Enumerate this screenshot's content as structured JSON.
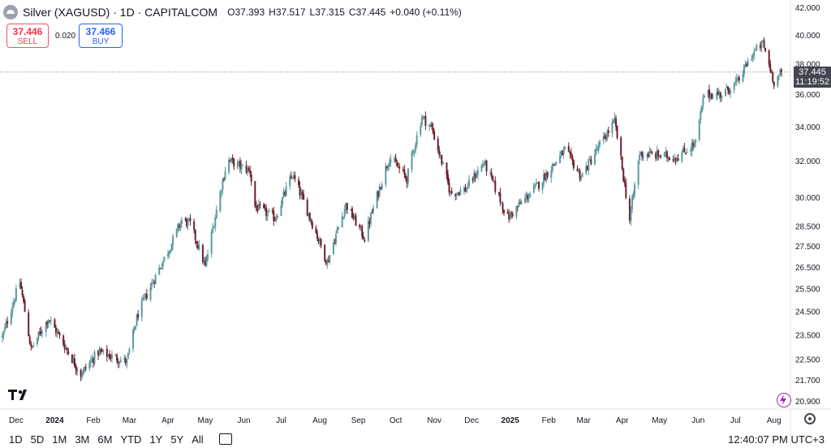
{
  "header": {
    "title": "Silver (XAGUSD) · 1D · CAPITALCOM",
    "open_label": "O",
    "open": "37.393",
    "high_label": "H",
    "high": "37.517",
    "low_label": "L",
    "low": "37.315",
    "close_label": "C",
    "close": "37.445",
    "change": "+0.040 (+0.11%)"
  },
  "trade": {
    "sell_price": "37.446",
    "sell_label": "SELL",
    "spread": "0.020",
    "buy_price": "37.466",
    "buy_label": "BUY"
  },
  "last_price": {
    "value": "37.445",
    "countdown": "11:19:52"
  },
  "bottom": {
    "timeframes": [
      "1D",
      "5D",
      "1M",
      "3M",
      "6M",
      "YTD",
      "1Y",
      "5Y",
      "All"
    ],
    "clock": "12:40:07 PM UTC+3"
  },
  "colors": {
    "up": "#5b9aa0",
    "down": "#6e1f2a",
    "last_line": "#787b86"
  },
  "chart_data": {
    "type": "candlestick",
    "scale": "log",
    "ylim": [
      20.6,
      42.3
    ],
    "y_ticks": [
      "42.000",
      "40.000",
      "38.000",
      "36.000",
      "34.000",
      "32.000",
      "30.000",
      "28.500",
      "27.500",
      "26.500",
      "25.500",
      "24.500",
      "23.500",
      "22.500",
      "21.700",
      "20.900"
    ],
    "x_ticks": [
      "Dec",
      "2024",
      "Feb",
      "Mar",
      "Apr",
      "May",
      "Jun",
      "Jul",
      "Aug",
      "Sep",
      "Oct",
      "Nov",
      "Dec",
      "2025",
      "Feb",
      "Mar",
      "Apr",
      "May",
      "Jun",
      "Jul",
      "Aug"
    ],
    "anchors": [
      {
        "date": "2023-11-20",
        "close": 23.4
      },
      {
        "date": "2023-12-01",
        "close": 25.3
      },
      {
        "date": "2023-12-04",
        "close": 25.8
      },
      {
        "date": "2023-12-13",
        "close": 22.9
      },
      {
        "date": "2023-12-27",
        "close": 24.2
      },
      {
        "date": "2024-01-22",
        "close": 21.9
      },
      {
        "date": "2024-02-05",
        "close": 22.8
      },
      {
        "date": "2024-02-28",
        "close": 22.4
      },
      {
        "date": "2024-03-08",
        "close": 24.4
      },
      {
        "date": "2024-04-03",
        "close": 27.5
      },
      {
        "date": "2024-04-12",
        "close": 28.8
      },
      {
        "date": "2024-04-19",
        "close": 28.6
      },
      {
        "date": "2024-05-01",
        "close": 26.5
      },
      {
        "date": "2024-05-17",
        "close": 31.5
      },
      {
        "date": "2024-05-20",
        "close": 32.0
      },
      {
        "date": "2024-06-06",
        "close": 31.4
      },
      {
        "date": "2024-06-10",
        "close": 29.5
      },
      {
        "date": "2024-06-26",
        "close": 28.9
      },
      {
        "date": "2024-07-10",
        "close": 31.2
      },
      {
        "date": "2024-08-07",
        "close": 26.7
      },
      {
        "date": "2024-08-22",
        "close": 29.6
      },
      {
        "date": "2024-09-06",
        "close": 27.9
      },
      {
        "date": "2024-09-26",
        "close": 32.2
      },
      {
        "date": "2024-10-10",
        "close": 31.0
      },
      {
        "date": "2024-10-22",
        "close": 34.6
      },
      {
        "date": "2024-10-30",
        "close": 33.9
      },
      {
        "date": "2024-11-14",
        "close": 30.2
      },
      {
        "date": "2024-11-26",
        "close": 30.4
      },
      {
        "date": "2024-12-11",
        "close": 31.9
      },
      {
        "date": "2024-12-30",
        "close": 28.9
      },
      {
        "date": "2025-01-24",
        "close": 30.7
      },
      {
        "date": "2025-02-14",
        "close": 32.6
      },
      {
        "date": "2025-02-27",
        "close": 31.1
      },
      {
        "date": "2025-03-26",
        "close": 34.3
      },
      {
        "date": "2025-04-07",
        "close": 28.8
      },
      {
        "date": "2025-04-15",
        "close": 32.4
      },
      {
        "date": "2025-05-15",
        "close": 32.2
      },
      {
        "date": "2025-05-30",
        "close": 33.0
      },
      {
        "date": "2025-06-06",
        "close": 36.0
      },
      {
        "date": "2025-06-20",
        "close": 36.0
      },
      {
        "date": "2025-07-03",
        "close": 36.8
      },
      {
        "date": "2025-07-14",
        "close": 38.6
      },
      {
        "date": "2025-07-23",
        "close": 39.4
      },
      {
        "date": "2025-08-01",
        "close": 36.8
      },
      {
        "date": "2025-08-07",
        "close": 37.445
      }
    ],
    "last_price": 37.445
  }
}
